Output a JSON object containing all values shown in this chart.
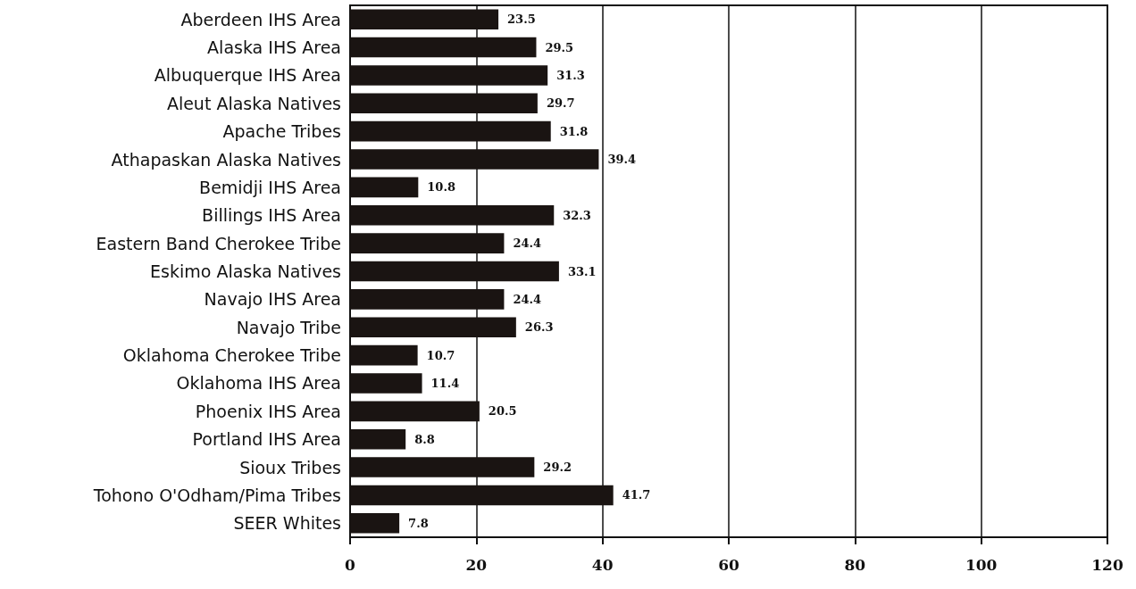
{
  "chart_data": {
    "type": "bar",
    "orientation": "horizontal",
    "categories": [
      "Aberdeen IHS Area",
      "Alaska IHS Area",
      "Albuquerque IHS Area",
      "Aleut Alaska Natives",
      "Apache Tribes",
      "Athapaskan Alaska Natives",
      "Bemidji IHS Area",
      "Billings IHS Area",
      "Eastern Band Cherokee Tribe",
      "Eskimo Alaska Natives",
      "Navajo IHS Area",
      "Navajo Tribe",
      "Oklahoma Cherokee Tribe",
      "Oklahoma IHS Area",
      "Phoenix IHS Area",
      "Portland IHS Area",
      "Sioux Tribes",
      "Tohono O'Odham/Pima Tribes",
      "SEER Whites"
    ],
    "values": [
      23.5,
      29.5,
      31.3,
      29.7,
      31.8,
      39.4,
      10.8,
      32.3,
      24.4,
      33.1,
      24.4,
      26.3,
      10.7,
      11.4,
      20.5,
      8.8,
      29.2,
      41.7,
      7.8
    ],
    "color": "#1a1412",
    "xlim": [
      0,
      120
    ],
    "xticks": [
      0,
      20,
      40,
      60,
      80,
      100,
      120
    ],
    "grid": "x",
    "data_labels": true
  }
}
